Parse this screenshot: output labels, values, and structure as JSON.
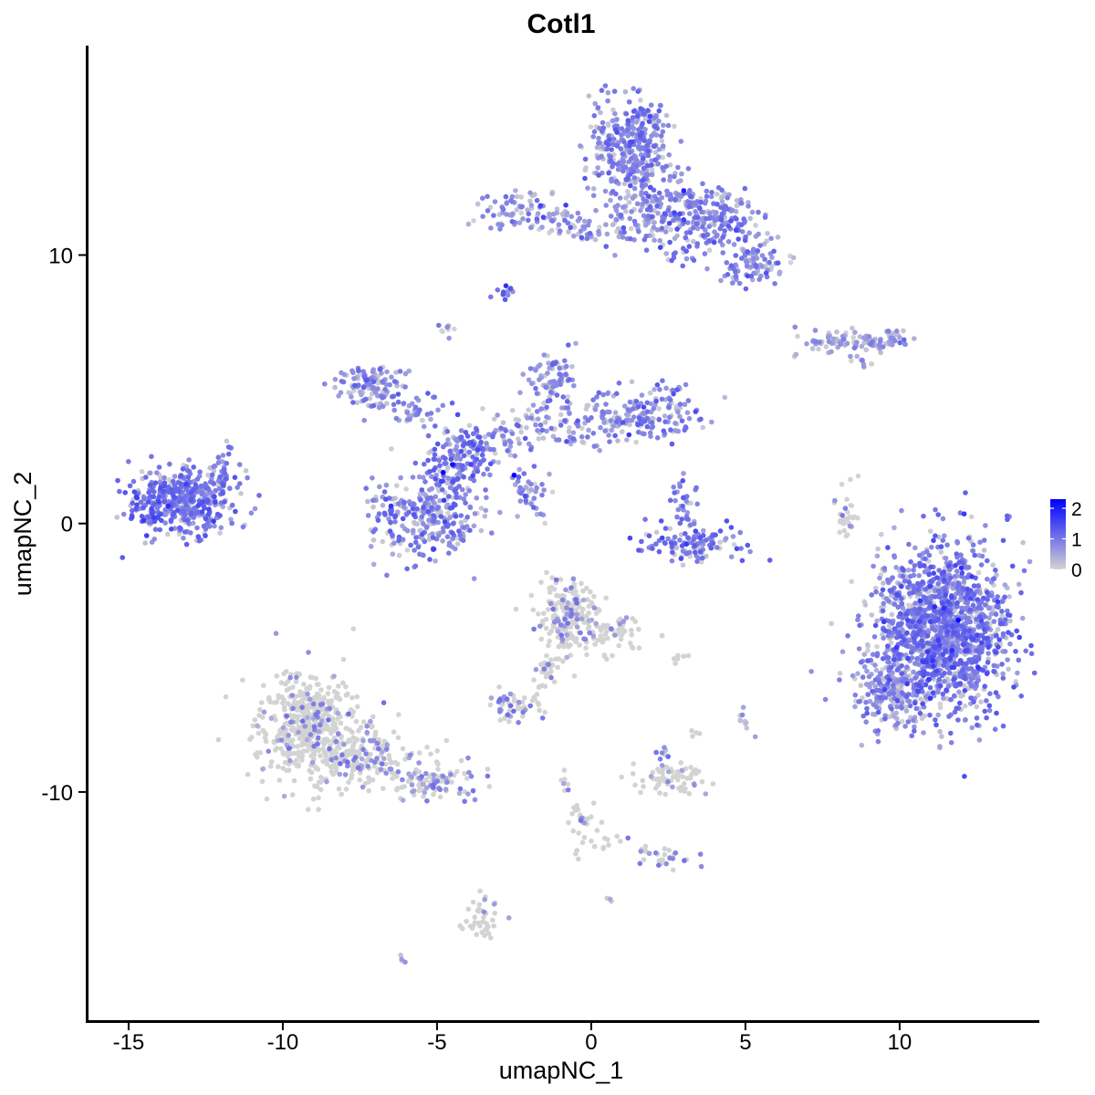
{
  "chart_data": {
    "type": "scatter",
    "title": "Cotl1",
    "xlabel": "umapNC_1",
    "ylabel": "umapNC_2",
    "xlim": [
      -16.3,
      14.5
    ],
    "ylim": [
      -18.5,
      17.8
    ],
    "x_ticks": [
      -15,
      -10,
      -5,
      0,
      5,
      10
    ],
    "y_ticks": [
      -10,
      0,
      10
    ],
    "x_tick_labels": [
      "-15",
      "-10",
      "-5",
      "0",
      "5",
      "10"
    ],
    "y_tick_labels": [
      "-10",
      "0",
      "10"
    ],
    "grid": false,
    "legend": {
      "position": "right",
      "type": "colorbar",
      "ticks": [
        0,
        1,
        2
      ],
      "tick_labels": [
        "0",
        "1",
        "2"
      ],
      "range": [
        0,
        2.3
      ],
      "low_color": "#d3d3d3",
      "high_color": "#0000ff"
    },
    "clusters": [
      {
        "cx": 11.4,
        "cy": -4.0,
        "sx": 1.1,
        "sy": 1.55,
        "n": 1500,
        "mean_expr": 0.95
      },
      {
        "cx": 9.6,
        "cy": -6.2,
        "sx": 0.5,
        "sy": 0.7,
        "n": 160,
        "mean_expr": 0.75
      },
      {
        "cx": 1.2,
        "cy": 14.0,
        "sx": 0.65,
        "sy": 0.95,
        "n": 380,
        "mean_expr": 0.85
      },
      {
        "cx": 2.6,
        "cy": 11.7,
        "sx": 0.9,
        "sy": 0.6,
        "n": 220,
        "mean_expr": 0.85
      },
      {
        "cx": 4.2,
        "cy": 11.1,
        "sx": 0.7,
        "sy": 0.5,
        "n": 120,
        "mean_expr": 0.85
      },
      {
        "cx": 5.3,
        "cy": 9.6,
        "sx": 0.5,
        "sy": 0.4,
        "n": 90,
        "mean_expr": 0.8
      },
      {
        "cx": 0.1,
        "cy": 11.0,
        "sx": 0.7,
        "sy": 0.3,
        "n": 45,
        "mean_expr": 0.7
      },
      {
        "cx": -2.5,
        "cy": 11.8,
        "sx": 0.6,
        "sy": 0.35,
        "n": 60,
        "mean_expr": 0.7
      },
      {
        "cx": -1.2,
        "cy": 11.4,
        "sx": 0.6,
        "sy": 0.25,
        "n": 22,
        "mean_expr": 0.7
      },
      {
        "cx": 2.9,
        "cy": 10.1,
        "sx": 0.3,
        "sy": 0.2,
        "n": 14,
        "mean_expr": 1.0
      },
      {
        "cx": -2.9,
        "cy": 8.6,
        "sx": 0.15,
        "sy": 0.12,
        "n": 12,
        "mean_expr": 1.1
      },
      {
        "cx": -4.6,
        "cy": 7.3,
        "sx": 0.2,
        "sy": 0.2,
        "n": 8,
        "mean_expr": 0.2
      },
      {
        "cx": 8.5,
        "cy": 6.8,
        "sx": 1.0,
        "sy": 0.25,
        "n": 70,
        "mean_expr": 0.6
      },
      {
        "cx": 9.7,
        "cy": 6.9,
        "sx": 0.25,
        "sy": 0.2,
        "n": 25,
        "mean_expr": 0.6
      },
      {
        "cx": 8.8,
        "cy": 6.0,
        "sx": 0.2,
        "sy": 0.15,
        "n": 8,
        "mean_expr": 0.7
      },
      {
        "cx": -13.4,
        "cy": 0.8,
        "sx": 0.85,
        "sy": 0.6,
        "n": 420,
        "mean_expr": 1.0
      },
      {
        "cx": -12.1,
        "cy": 1.8,
        "sx": 0.5,
        "sy": 0.5,
        "n": 60,
        "mean_expr": 0.9
      },
      {
        "cx": -7.2,
        "cy": 5.1,
        "sx": 0.55,
        "sy": 0.45,
        "n": 120,
        "mean_expr": 0.75
      },
      {
        "cx": -5.6,
        "cy": 4.3,
        "sx": 0.5,
        "sy": 0.35,
        "n": 40,
        "mean_expr": 0.8
      },
      {
        "cx": -5.4,
        "cy": 0.3,
        "sx": 0.9,
        "sy": 0.85,
        "n": 280,
        "mean_expr": 0.85
      },
      {
        "cx": -4.4,
        "cy": 2.2,
        "sx": 0.5,
        "sy": 0.75,
        "n": 120,
        "mean_expr": 1.0
      },
      {
        "cx": -3.4,
        "cy": 2.8,
        "sx": 0.7,
        "sy": 0.4,
        "n": 70,
        "mean_expr": 0.9
      },
      {
        "cx": -1.3,
        "cy": 3.7,
        "sx": 1.2,
        "sy": 0.45,
        "n": 100,
        "mean_expr": 0.75
      },
      {
        "cx": -1.2,
        "cy": 5.4,
        "sx": 0.4,
        "sy": 0.5,
        "n": 80,
        "mean_expr": 0.8
      },
      {
        "cx": 1.8,
        "cy": 4.1,
        "sx": 1.0,
        "sy": 0.5,
        "n": 170,
        "mean_expr": 0.85
      },
      {
        "cx": -2.0,
        "cy": 1.2,
        "sx": 0.5,
        "sy": 0.35,
        "n": 22,
        "mean_expr": 0.65
      },
      {
        "cx": 3.3,
        "cy": -0.7,
        "sx": 0.75,
        "sy": 0.38,
        "n": 120,
        "mean_expr": 1.0
      },
      {
        "cx": 3.1,
        "cy": 0.8,
        "sx": 0.25,
        "sy": 0.45,
        "n": 30,
        "mean_expr": 0.85
      },
      {
        "cx": 8.2,
        "cy": 0.4,
        "sx": 0.2,
        "sy": 0.55,
        "n": 30,
        "mean_expr": 0.15
      },
      {
        "cx": -9.1,
        "cy": -7.7,
        "sx": 0.85,
        "sy": 1.0,
        "n": 520,
        "mean_expr": 0.06
      },
      {
        "cx": -7.0,
        "cy": -8.7,
        "sx": 0.9,
        "sy": 0.55,
        "n": 140,
        "mean_expr": 0.1
      },
      {
        "cx": -5.0,
        "cy": -9.7,
        "sx": 0.7,
        "sy": 0.35,
        "n": 90,
        "mean_expr": 0.2
      },
      {
        "cx": -0.8,
        "cy": -3.4,
        "sx": 0.5,
        "sy": 0.65,
        "n": 200,
        "mean_expr": 0.1
      },
      {
        "cx": 0.6,
        "cy": -4.1,
        "sx": 0.5,
        "sy": 0.35,
        "n": 60,
        "mean_expr": 0.08
      },
      {
        "cx": -1.4,
        "cy": -5.3,
        "sx": 0.3,
        "sy": 0.35,
        "n": 25,
        "mean_expr": 0.05
      },
      {
        "cx": -2.6,
        "cy": -6.8,
        "sx": 0.35,
        "sy": 0.25,
        "n": 50,
        "mean_expr": 0.2
      },
      {
        "cx": 2.6,
        "cy": -9.5,
        "sx": 0.55,
        "sy": 0.35,
        "n": 70,
        "mean_expr": 0.1
      },
      {
        "cx": 2.4,
        "cy": -8.7,
        "sx": 0.15,
        "sy": 0.2,
        "n": 6,
        "mean_expr": 0.8
      },
      {
        "cx": 2.5,
        "cy": -12.4,
        "sx": 0.5,
        "sy": 0.2,
        "n": 20,
        "mean_expr": 0.15
      },
      {
        "cx": -0.3,
        "cy": -11.3,
        "sx": 0.35,
        "sy": 0.55,
        "n": 25,
        "mean_expr": 0.05
      },
      {
        "cx": 0.5,
        "cy": -11.8,
        "sx": 0.4,
        "sy": 0.2,
        "n": 8,
        "mean_expr": 0.05
      },
      {
        "cx": -3.5,
        "cy": -14.7,
        "sx": 0.25,
        "sy": 0.45,
        "n": 40,
        "mean_expr": 0.05
      },
      {
        "cx": 5.0,
        "cy": -7.3,
        "sx": 0.15,
        "sy": 0.2,
        "n": 10,
        "mean_expr": 0.3
      },
      {
        "cx": 3.4,
        "cy": -7.7,
        "sx": 0.1,
        "sy": 0.15,
        "n": 4,
        "mean_expr": 0.05
      },
      {
        "cx": 2.8,
        "cy": -5.0,
        "sx": 0.2,
        "sy": 0.1,
        "n": 8,
        "mean_expr": 0.1
      },
      {
        "cx": -6.1,
        "cy": -16.2,
        "sx": 0.1,
        "sy": 0.08,
        "n": 4,
        "mean_expr": 0.5
      },
      {
        "cx": 0.6,
        "cy": -14.0,
        "sx": 0.1,
        "sy": 0.1,
        "n": 3,
        "mean_expr": 0.3
      }
    ],
    "trails": [
      {
        "x0": -2.6,
        "y0": 1.8,
        "x1": -1.4,
        "y1": -0.2,
        "n": 22,
        "mean_expr": 0.8
      },
      {
        "x0": -1.8,
        "y0": 11.5,
        "x1": -0.3,
        "y1": 11.0,
        "n": 12,
        "mean_expr": 0.7
      },
      {
        "x0": -1.0,
        "y0": -9.2,
        "x1": -0.2,
        "y1": -11.2,
        "n": 14,
        "mean_expr": 0.1
      },
      {
        "x0": 1.5,
        "y0": -12.1,
        "x1": 2.4,
        "y1": -12.5,
        "n": 10,
        "mean_expr": 0.1
      },
      {
        "x0": -1.0,
        "y0": -5.0,
        "x1": -1.9,
        "y1": -6.6,
        "n": 12,
        "mean_expr": 0.05
      },
      {
        "x0": 7.5,
        "y0": 6.9,
        "x1": 9.2,
        "y1": 6.7,
        "n": 20,
        "mean_expr": 0.6
      }
    ],
    "highlights": [
      {
        "x": -4.8,
        "y": 1.9,
        "value": 2.3
      },
      {
        "x": -2.5,
        "y": 1.8,
        "value": 2.4
      },
      {
        "x": -4.5,
        "y": 2.2,
        "value": 2.1
      },
      {
        "x": 11.9,
        "y": -3.6,
        "value": 2.2
      },
      {
        "x": 3.0,
        "y": 12.4,
        "value": 1.9
      }
    ]
  }
}
